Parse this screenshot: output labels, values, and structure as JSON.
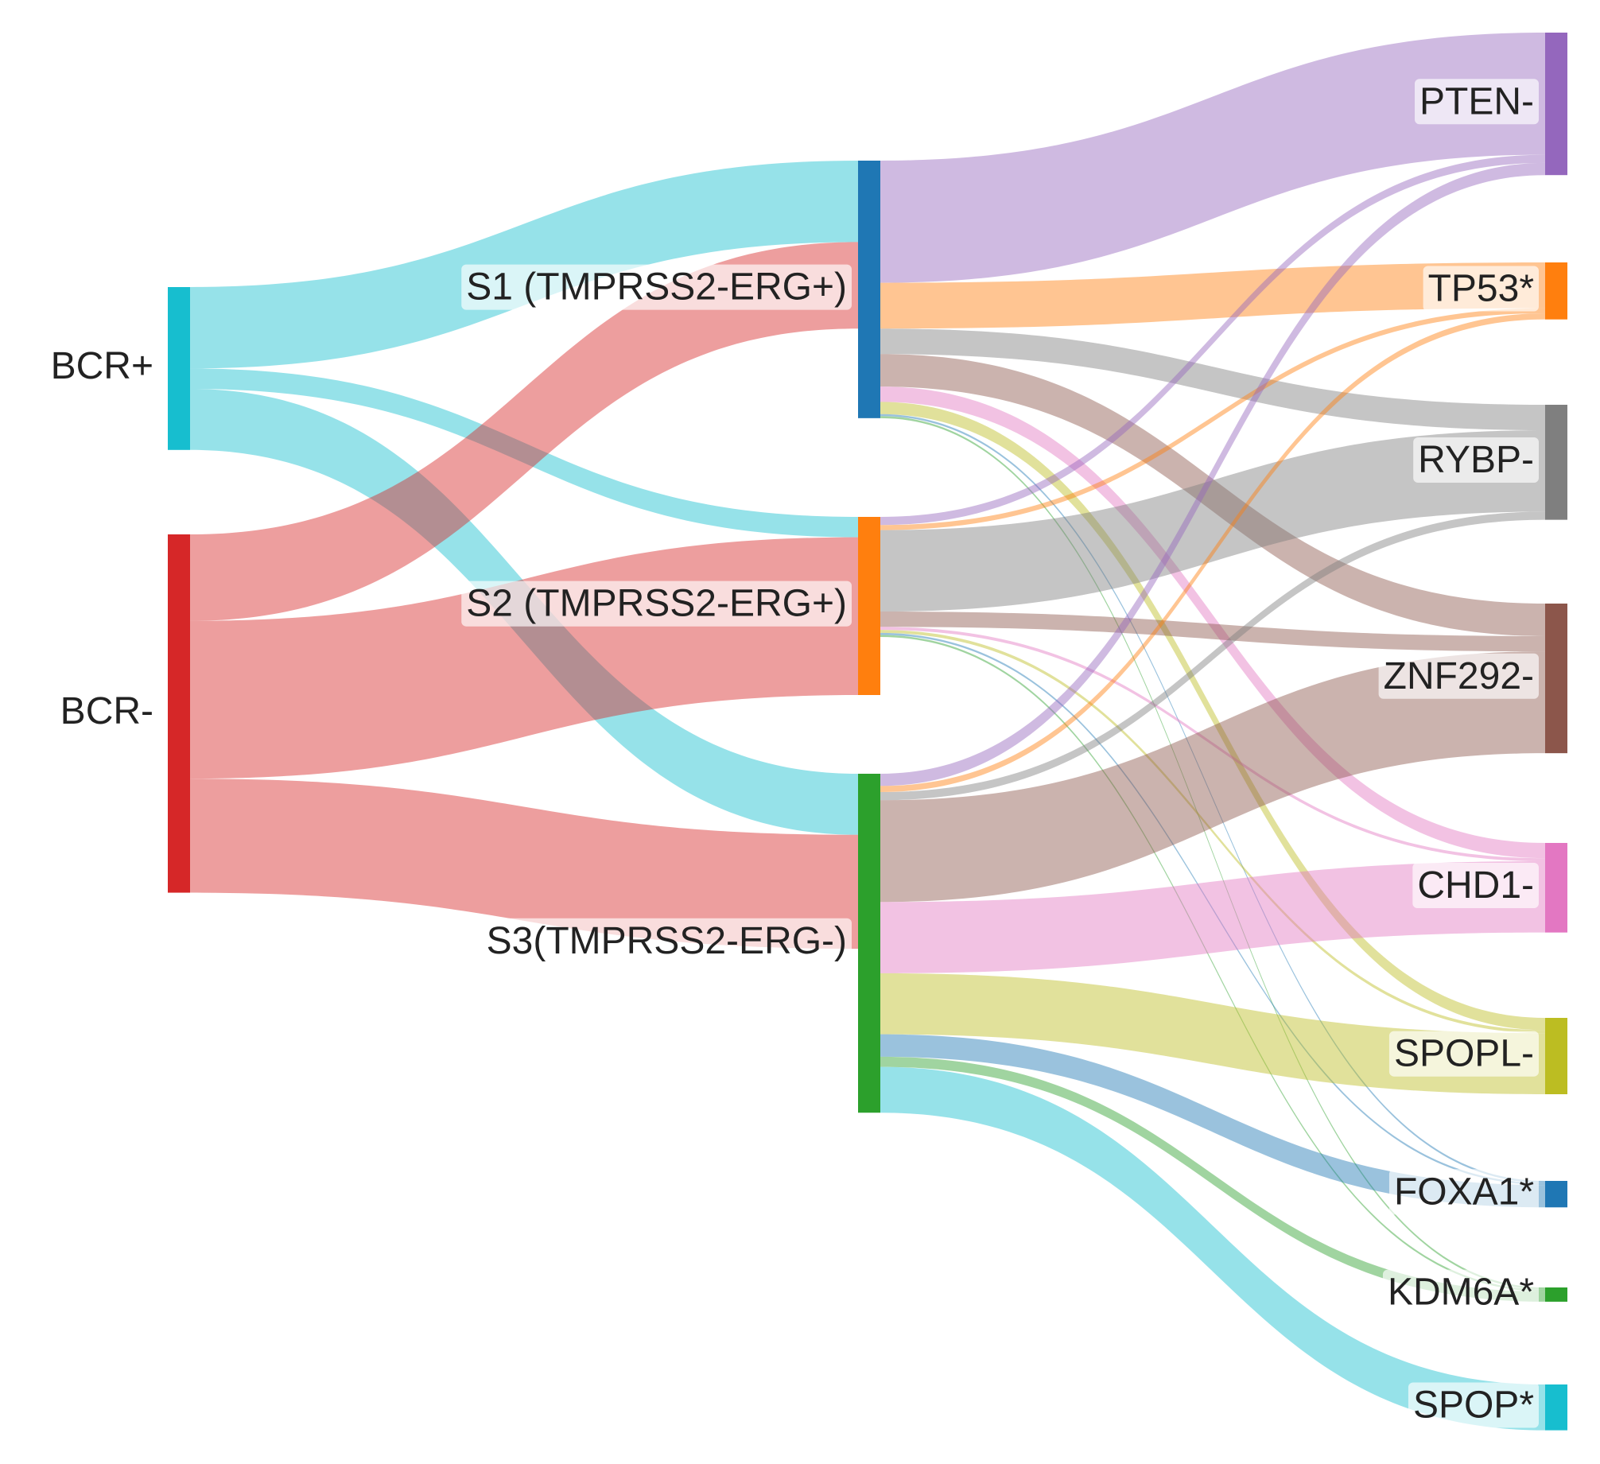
{
  "chart_data": {
    "type": "sankey",
    "nodes": [
      {
        "name": "BCR+",
        "color": "#17becf"
      },
      {
        "name": "BCR-",
        "color": "#d62728"
      },
      {
        "name": "S1 (TMPRSS2-ERG+)",
        "color": "#1f77b4"
      },
      {
        "name": "S2 (TMPRSS2-ERG+)",
        "color": "#ff7f0e"
      },
      {
        "name": "S3(TMPRSS2-ERG-)",
        "color": "#2ca02c"
      },
      {
        "name": "PTEN-",
        "color": "#9467bd"
      },
      {
        "name": "TP53*",
        "color": "#ff7f0e"
      },
      {
        "name": "RYBP-",
        "color": "#7f7f7f"
      },
      {
        "name": "ZNF292-",
        "color": "#8c564b"
      },
      {
        "name": "CHD1-",
        "color": "#e377c2"
      },
      {
        "name": "SPOPL-",
        "color": "#bcbd22"
      },
      {
        "name": "FOXA1*",
        "color": "#1f77b4"
      },
      {
        "name": "KDM6A*",
        "color": "#2ca02c"
      },
      {
        "name": "SPOP*",
        "color": "#17becf"
      }
    ],
    "links": [
      {
        "source": "BCR+",
        "target": "S1 (TMPRSS2-ERG+)",
        "value": 80
      },
      {
        "source": "BCR+",
        "target": "S2 (TMPRSS2-ERG+)",
        "value": 20
      },
      {
        "source": "BCR+",
        "target": "S3(TMPRSS2-ERG-)",
        "value": 60
      },
      {
        "source": "BCR-",
        "target": "S1 (TMPRSS2-ERG+)",
        "value": 85
      },
      {
        "source": "BCR-",
        "target": "S2 (TMPRSS2-ERG+)",
        "value": 155
      },
      {
        "source": "BCR-",
        "target": "S3(TMPRSS2-ERG-)",
        "value": 112
      },
      {
        "source": "S1 (TMPRSS2-ERG+)",
        "target": "PTEN-",
        "value": 120
      },
      {
        "source": "S1 (TMPRSS2-ERG+)",
        "target": "TP53*",
        "value": 45
      },
      {
        "source": "S1 (TMPRSS2-ERG+)",
        "target": "RYBP-",
        "value": 25
      },
      {
        "source": "S1 (TMPRSS2-ERG+)",
        "target": "ZNF292-",
        "value": 32
      },
      {
        "source": "S1 (TMPRSS2-ERG+)",
        "target": "CHD1-",
        "value": 15
      },
      {
        "source": "S1 (TMPRSS2-ERG+)",
        "target": "SPOPL-",
        "value": 12
      },
      {
        "source": "S1 (TMPRSS2-ERG+)",
        "target": "FOXA1*",
        "value": 2
      },
      {
        "source": "S1 (TMPRSS2-ERG+)",
        "target": "KDM6A*",
        "value": 2
      },
      {
        "source": "S2 (TMPRSS2-ERG+)",
        "target": "PTEN-",
        "value": 8
      },
      {
        "source": "S2 (TMPRSS2-ERG+)",
        "target": "TP53*",
        "value": 5
      },
      {
        "source": "S2 (TMPRSS2-ERG+)",
        "target": "RYBP-",
        "value": 80
      },
      {
        "source": "S2 (TMPRSS2-ERG+)",
        "target": "ZNF292-",
        "value": 15
      },
      {
        "source": "S2 (TMPRSS2-ERG+)",
        "target": "CHD1-",
        "value": 3
      },
      {
        "source": "S2 (TMPRSS2-ERG+)",
        "target": "SPOPL-",
        "value": 3
      },
      {
        "source": "S2 (TMPRSS2-ERG+)",
        "target": "FOXA1*",
        "value": 2
      },
      {
        "source": "S2 (TMPRSS2-ERG+)",
        "target": "KDM6A*",
        "value": 2
      },
      {
        "source": "S3(TMPRSS2-ERG-)",
        "target": "PTEN-",
        "value": 12
      },
      {
        "source": "S3(TMPRSS2-ERG-)",
        "target": "TP53*",
        "value": 6
      },
      {
        "source": "S3(TMPRSS2-ERG-)",
        "target": "RYBP-",
        "value": 8
      },
      {
        "source": "S3(TMPRSS2-ERG-)",
        "target": "ZNF292-",
        "value": 100
      },
      {
        "source": "S3(TMPRSS2-ERG-)",
        "target": "CHD1-",
        "value": 70
      },
      {
        "source": "S3(TMPRSS2-ERG-)",
        "target": "SPOPL-",
        "value": 60
      },
      {
        "source": "S3(TMPRSS2-ERG-)",
        "target": "FOXA1*",
        "value": 22
      },
      {
        "source": "S3(TMPRSS2-ERG-)",
        "target": "KDM6A*",
        "value": 10
      },
      {
        "source": "S3(TMPRSS2-ERG-)",
        "target": "SPOP*",
        "value": 45
      }
    ]
  }
}
